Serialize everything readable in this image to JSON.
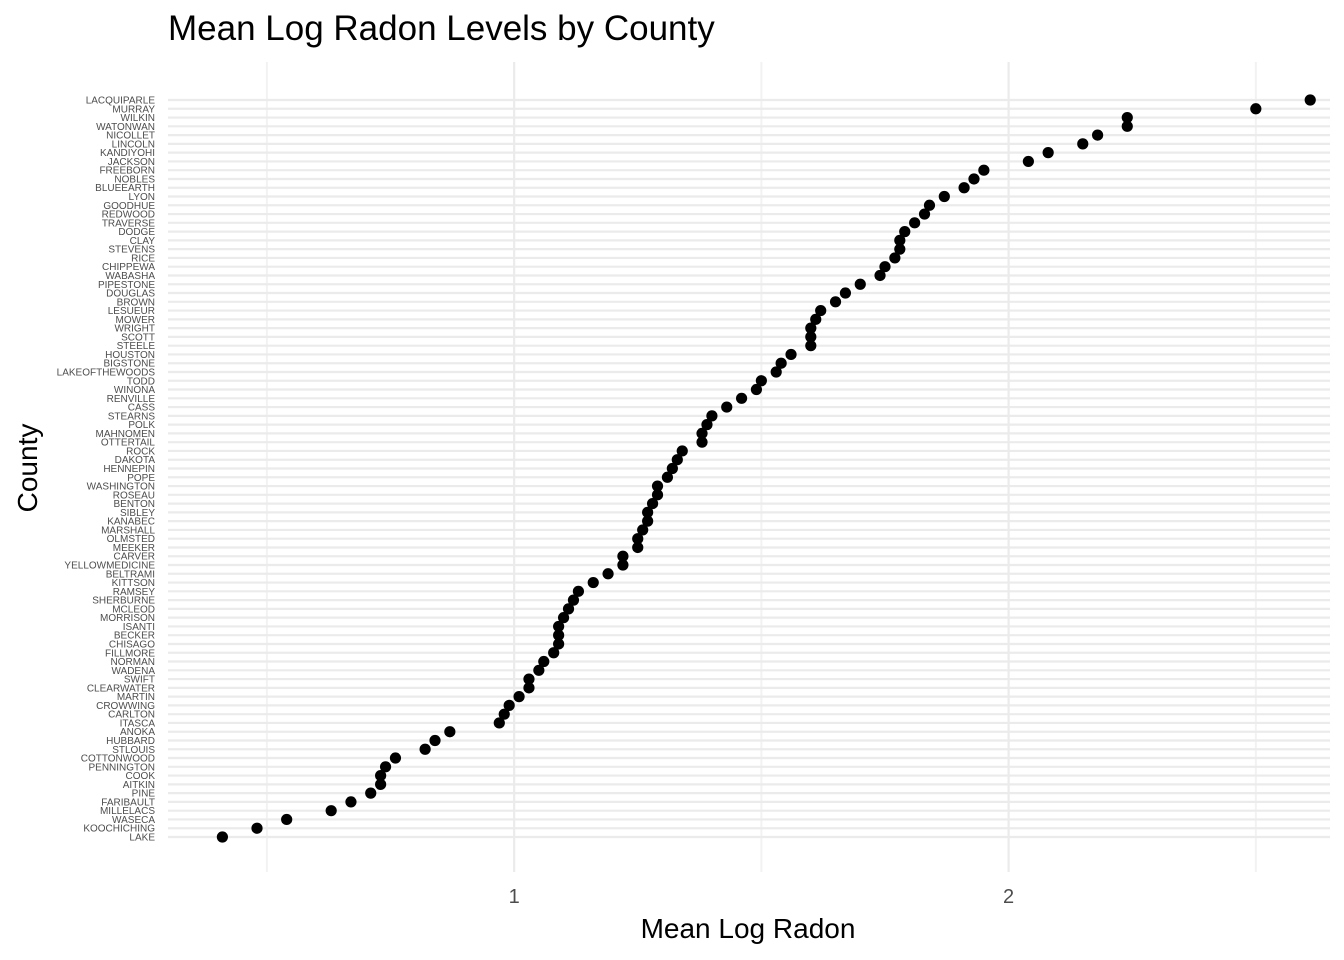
{
  "chart_data": {
    "type": "scatter",
    "title": "Mean Log Radon Levels by County",
    "xlabel": "Mean Log Radon",
    "ylabel": "County",
    "x_ticks": [
      1,
      2
    ],
    "xlim": [
      0.3,
      2.65
    ],
    "grid": true,
    "legend": "none",
    "colors": {
      "point": "#000000",
      "grid_major": "#ebebeb",
      "grid_minor": "#f2f2f2"
    },
    "categories": [
      "LACQUIPARLE",
      "MURRAY",
      "WILKIN",
      "WATONWAN",
      "NICOLLET",
      "LINCOLN",
      "KANDIYOHI",
      "JACKSON",
      "FREEBORN",
      "NOBLES",
      "BLUEEARTH",
      "LYON",
      "GOODHUE",
      "REDWOOD",
      "TRAVERSE",
      "DODGE",
      "CLAY",
      "STEVENS",
      "RICE",
      "CHIPPEWA",
      "WABASHA",
      "PIPESTONE",
      "DOUGLAS",
      "BROWN",
      "LESUEUR",
      "MOWER",
      "WRIGHT",
      "SCOTT",
      "STEELE",
      "HOUSTON",
      "BIGSTONE",
      "LAKEOFTHEWOODS",
      "TODD",
      "WINONA",
      "RENVILLE",
      "CASS",
      "STEARNS",
      "POLK",
      "MAHNOMEN",
      "OTTERTAIL",
      "ROCK",
      "DAKOTA",
      "HENNEPIN",
      "POPE",
      "WASHINGTON",
      "ROSEAU",
      "BENTON",
      "SIBLEY",
      "KANABEC",
      "MARSHALL",
      "OLMSTED",
      "MEEKER",
      "CARVER",
      "YELLOWMEDICINE",
      "BELTRAMI",
      "KITTSON",
      "RAMSEY",
      "SHERBURNE",
      "MCLEOD",
      "MORRISON",
      "ISANTI",
      "BECKER",
      "CHISAGO",
      "FILLMORE",
      "NORMAN",
      "WADENA",
      "SWIFT",
      "CLEARWATER",
      "MARTIN",
      "CROWWING",
      "CARLTON",
      "ITASCA",
      "ANOKA",
      "HUBBARD",
      "STLOUIS",
      "COTTONWOOD",
      "PENNINGTON",
      "COOK",
      "AITKIN",
      "PINE",
      "FARIBAULT",
      "MILLELACS",
      "WASECA",
      "KOOCHICHING",
      "LAKE"
    ],
    "values": [
      2.61,
      2.5,
      2.24,
      2.24,
      2.18,
      2.15,
      2.08,
      2.04,
      1.95,
      1.93,
      1.91,
      1.87,
      1.84,
      1.83,
      1.81,
      1.79,
      1.78,
      1.78,
      1.77,
      1.75,
      1.74,
      1.7,
      1.67,
      1.65,
      1.62,
      1.61,
      1.6,
      1.6,
      1.6,
      1.56,
      1.54,
      1.53,
      1.5,
      1.49,
      1.46,
      1.43,
      1.4,
      1.39,
      1.38,
      1.38,
      1.34,
      1.33,
      1.32,
      1.31,
      1.29,
      1.29,
      1.28,
      1.27,
      1.27,
      1.26,
      1.25,
      1.25,
      1.22,
      1.22,
      1.19,
      1.16,
      1.13,
      1.12,
      1.11,
      1.1,
      1.09,
      1.09,
      1.09,
      1.08,
      1.06,
      1.05,
      1.03,
      1.03,
      1.01,
      0.99,
      0.98,
      0.97,
      0.87,
      0.84,
      0.82,
      0.76,
      0.74,
      0.73,
      0.73,
      0.71,
      0.67,
      0.63,
      0.54,
      0.48,
      0.41
    ]
  }
}
